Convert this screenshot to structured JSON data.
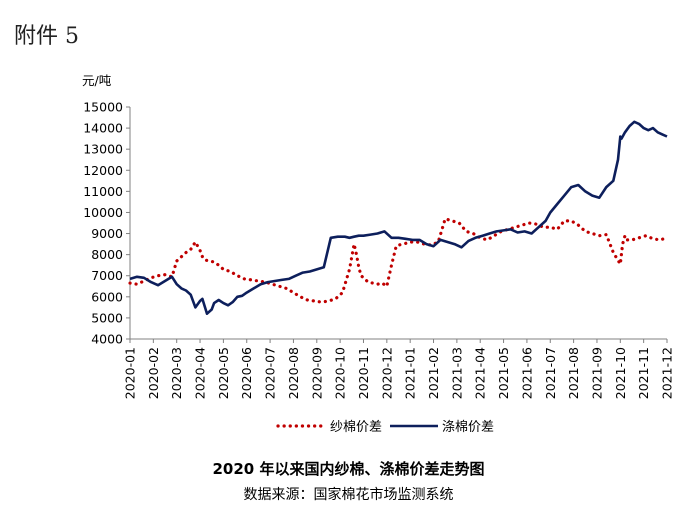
{
  "attachment_label": "附件 5",
  "caption": {
    "title": "2020 年以来国内纱棉、涤棉价差走势图",
    "source": "数据来源：国家棉花市场监测系统"
  },
  "chart_data": {
    "type": "line",
    "title": "2020 年以来国内纱棉、涤棉价差走势图",
    "ylabel": "元/吨",
    "xlabel": "",
    "ylim": [
      4000,
      15000
    ],
    "ytick_step": 1000,
    "yticks": [
      "15000",
      "14000",
      "13000",
      "12000",
      "11000",
      "10000",
      "9000",
      "8000",
      "7000",
      "6000",
      "5000",
      "4000"
    ],
    "x_categories": [
      "2020-01",
      "2020-02",
      "2020-03",
      "2020-04",
      "2020-05",
      "2020-06",
      "2020-07",
      "2020-08",
      "2020-09",
      "2020-10",
      "2020-11",
      "2020-12",
      "2021-01",
      "2021-02",
      "2021-03",
      "2021-04",
      "2021-05",
      "2021-06",
      "2021-07",
      "2021-08",
      "2021-09",
      "2021-10",
      "2021-11",
      "2021-12"
    ],
    "grid": false,
    "legend_position": "bottom",
    "series": [
      {
        "name": "纱棉价差",
        "color": "#c00000",
        "style": "dotted",
        "x": [
          0,
          0.3,
          0.6,
          0.9,
          1.2,
          1.5,
          1.8,
          2.0,
          2.2,
          2.4,
          2.6,
          2.8,
          3.0,
          3.1,
          3.2,
          3.4,
          3.6,
          3.8,
          4.0,
          4.3,
          4.6,
          4.9,
          5.2,
          5.5,
          5.8,
          6.1,
          6.4,
          6.7,
          7.0,
          7.3,
          7.6,
          7.9,
          8.2,
          8.5,
          8.8,
          9.1,
          9.4,
          9.6,
          9.7,
          9.8,
          9.9,
          10.0,
          10.2,
          10.4,
          10.6,
          10.8,
          11.0,
          11.2,
          11.4,
          11.5,
          11.7,
          12.0,
          12.3,
          12.6,
          12.9,
          13.2,
          13.5,
          13.8,
          14.1,
          14.4,
          14.7,
          15.0,
          15.3,
          15.6,
          15.9,
          16.2,
          16.5,
          16.8,
          17.1,
          17.4,
          17.7,
          18.0,
          18.3,
          18.6,
          18.9,
          19.2,
          19.5,
          19.8,
          20.1,
          20.4,
          20.7,
          21.0,
          21.1,
          21.2,
          21.3,
          21.5,
          21.8,
          22.1,
          22.4,
          22.7,
          23.0
        ],
        "values": [
          6650,
          6600,
          6750,
          6900,
          7000,
          7050,
          6950,
          7700,
          7900,
          8100,
          8250,
          8600,
          8200,
          7900,
          7750,
          7700,
          7650,
          7500,
          7300,
          7200,
          7000,
          6850,
          6800,
          6750,
          6700,
          6600,
          6500,
          6400,
          6200,
          6000,
          5850,
          5800,
          5750,
          5800,
          5900,
          6200,
          7300,
          8500,
          8000,
          7400,
          7000,
          6900,
          6700,
          6650,
          6600,
          6650,
          6500,
          7500,
          8400,
          8450,
          8500,
          8600,
          8600,
          8500,
          8450,
          8600,
          9700,
          9600,
          9500,
          9100,
          9000,
          8800,
          8700,
          8900,
          9100,
          9200,
          9300,
          9400,
          9500,
          9450,
          9300,
          9300,
          9200,
          9600,
          9600,
          9400,
          9100,
          9000,
          8900,
          8950,
          8100,
          7550,
          8500,
          8900,
          8700,
          8700,
          8800,
          8900,
          8750,
          8700,
          8800
        ]
      },
      {
        "name": "涤棉价差",
        "color": "#0d1f5c",
        "style": "solid",
        "x": [
          0,
          0.3,
          0.6,
          0.9,
          1.2,
          1.5,
          1.8,
          2.0,
          2.2,
          2.4,
          2.6,
          2.8,
          3.0,
          3.1,
          3.3,
          3.5,
          3.6,
          3.8,
          4.0,
          4.2,
          4.4,
          4.6,
          4.8,
          5.0,
          5.3,
          5.6,
          5.9,
          6.2,
          6.5,
          6.8,
          7.1,
          7.4,
          7.7,
          8.0,
          8.3,
          8.6,
          8.9,
          9.2,
          9.4,
          9.6,
          9.8,
          10.0,
          10.3,
          10.6,
          10.9,
          11.2,
          11.5,
          11.8,
          12.1,
          12.4,
          12.7,
          13.0,
          13.3,
          13.6,
          13.9,
          14.2,
          14.5,
          14.8,
          15.1,
          15.4,
          15.7,
          16.0,
          16.3,
          16.6,
          16.9,
          17.2,
          17.5,
          17.8,
          18.0,
          18.3,
          18.6,
          18.9,
          19.2,
          19.5,
          19.8,
          20.1,
          20.4,
          20.7,
          20.9,
          21.0,
          21.05,
          21.2,
          21.4,
          21.6,
          21.8,
          22.0,
          22.2,
          22.4,
          22.6,
          22.8,
          23.0
        ],
        "values": [
          6850,
          6950,
          6900,
          6700,
          6550,
          6750,
          6950,
          6600,
          6400,
          6300,
          6100,
          5500,
          5800,
          5900,
          5200,
          5400,
          5700,
          5850,
          5700,
          5600,
          5750,
          6000,
          6050,
          6200,
          6400,
          6600,
          6700,
          6750,
          6800,
          6850,
          7000,
          7150,
          7200,
          7300,
          7400,
          8800,
          8850,
          8850,
          8800,
          8850,
          8900,
          8900,
          8950,
          9000,
          9100,
          8800,
          8800,
          8750,
          8700,
          8700,
          8500,
          8400,
          8700,
          8600,
          8500,
          8350,
          8650,
          8800,
          8900,
          9000,
          9100,
          9150,
          9200,
          9050,
          9100,
          9000,
          9300,
          9600,
          10000,
          10400,
          10800,
          11200,
          11300,
          11000,
          10800,
          10700,
          11200,
          11500,
          12500,
          13600,
          13500,
          13800,
          14100,
          14300,
          14200,
          14000,
          13900,
          14000,
          13800,
          13700,
          13600
        ]
      }
    ]
  }
}
